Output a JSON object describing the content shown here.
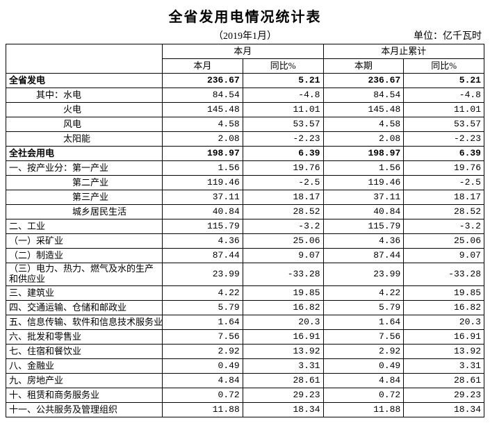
{
  "title": "全省发用电情况统计表",
  "period": "（2019年1月）",
  "unit": "单位：亿千瓦时",
  "headers": {
    "group1": "本月",
    "group2": "本月止累计",
    "col1": "本月",
    "col2": "同比%",
    "col3": "本期",
    "col4": "同比%"
  },
  "rows": [
    {
      "label": "全省发电",
      "bold": true,
      "v1": "236.67",
      "v2": "5.21",
      "v3": "236.67",
      "v4": "5.21"
    },
    {
      "label": "　　　其中：水电",
      "v1": "84.54",
      "v2": "-4.8",
      "v3": "84.54",
      "v4": "-4.8"
    },
    {
      "label": "　　　　　　火电",
      "v1": "145.48",
      "v2": "11.01",
      "v3": "145.48",
      "v4": "11.01"
    },
    {
      "label": "　　　　　　风电",
      "v1": "4.58",
      "v2": "53.57",
      "v3": "4.58",
      "v4": "53.57"
    },
    {
      "label": "　　　　　　太阳能",
      "v1": "2.08",
      "v2": "-2.23",
      "v3": "2.08",
      "v4": "-2.23"
    },
    {
      "label": "全社会用电",
      "bold": true,
      "v1": "198.97",
      "v2": "6.39",
      "v3": "198.97",
      "v4": "6.39"
    },
    {
      "label": "一、按产业分：第一产业",
      "v1": "1.56",
      "v2": "19.76",
      "v3": "1.56",
      "v4": "19.76"
    },
    {
      "label": "　　　　　　　第二产业",
      "v1": "119.46",
      "v2": "-2.5",
      "v3": "119.46",
      "v4": "-2.5"
    },
    {
      "label": "　　　　　　　第三产业",
      "v1": "37.11",
      "v2": "18.17",
      "v3": "37.11",
      "v4": "18.17"
    },
    {
      "label": "　　　　　　　城乡居民生活",
      "v1": "40.84",
      "v2": "28.52",
      "v3": "40.84",
      "v4": "28.52"
    },
    {
      "label": "二、工业",
      "v1": "115.79",
      "v2": "-3.2",
      "v3": "115.79",
      "v4": "-3.2"
    },
    {
      "label": "（一）采矿业",
      "v1": "4.36",
      "v2": "25.06",
      "v3": "4.36",
      "v4": "25.06"
    },
    {
      "label": "（二）制造业",
      "v1": "87.44",
      "v2": "9.07",
      "v3": "87.44",
      "v4": "9.07"
    },
    {
      "label": "（三）电力、热力、燃气及水的生产和供应业",
      "wrap": true,
      "v1": "23.99",
      "v2": "-33.28",
      "v3": "23.99",
      "v4": "-33.28"
    },
    {
      "label": "三、建筑业",
      "v1": "4.22",
      "v2": "19.85",
      "v3": "4.22",
      "v4": "19.85"
    },
    {
      "label": "四、交通运输、仓储和邮政业",
      "v1": "5.79",
      "v2": "16.82",
      "v3": "5.79",
      "v4": "16.82"
    },
    {
      "label": "五、信息传输、软件和信息技术服务业",
      "v1": "1.64",
      "v2": "20.3",
      "v3": "1.64",
      "v4": "20.3"
    },
    {
      "label": "六、批发和零售业",
      "v1": "7.56",
      "v2": "16.91",
      "v3": "7.56",
      "v4": "16.91"
    },
    {
      "label": "七、住宿和餐饮业",
      "v1": "2.92",
      "v2": "13.92",
      "v3": "2.92",
      "v4": "13.92"
    },
    {
      "label": "八、金融业",
      "v1": "0.49",
      "v2": "3.31",
      "v3": "0.49",
      "v4": "3.31"
    },
    {
      "label": "九、房地产业",
      "v1": "4.84",
      "v2": "28.61",
      "v3": "4.84",
      "v4": "28.61"
    },
    {
      "label": "十、租赁和商务服务业",
      "v1": "0.72",
      "v2": "29.23",
      "v3": "0.72",
      "v4": "29.23"
    },
    {
      "label": "十一、公共服务及管理组织",
      "v1": "11.88",
      "v2": "18.34",
      "v3": "11.88",
      "v4": "18.34"
    }
  ]
}
